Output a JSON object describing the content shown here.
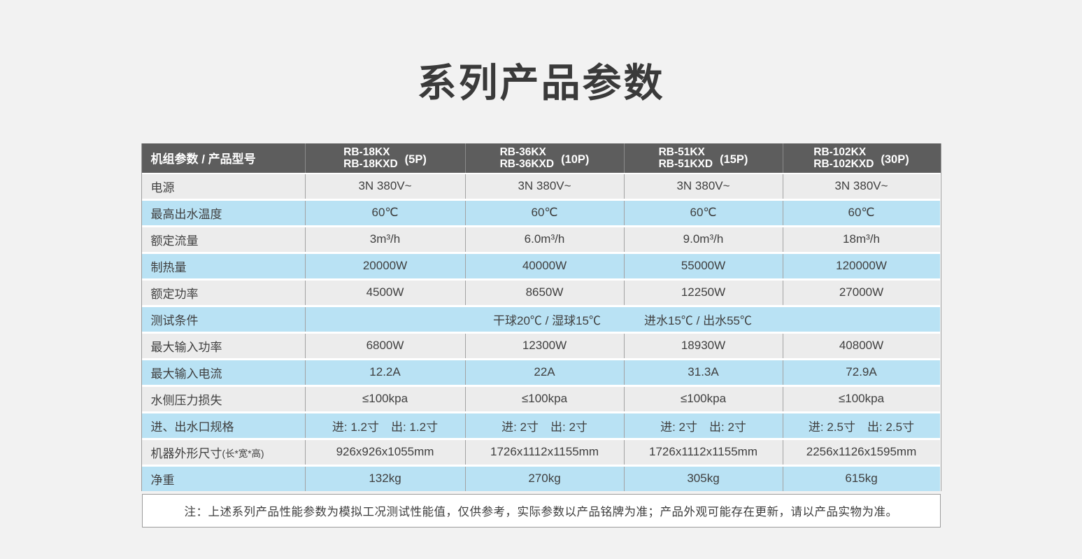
{
  "page": {
    "title": "系列产品参数"
  },
  "colors": {
    "page_background": "#f2f2f2",
    "header_background": "#5d5d5d",
    "header_text": "#ffffff",
    "row_blue": "#b9e2f4",
    "row_gray": "#ececec",
    "border": "#9c9c9c",
    "title_text": "#3a3a3a"
  },
  "table": {
    "header": {
      "label": "机组参数 / 产品型号",
      "columns": [
        {
          "line1": "RB-18KX",
          "line2": "RB-18KXD",
          "power": "(5P)"
        },
        {
          "line1": "RB-36KX",
          "line2": "RB-36KXD",
          "power": "(10P)"
        },
        {
          "line1": "RB-51KX",
          "line2": "RB-51KXD",
          "power": "(15P)"
        },
        {
          "line1": "RB-102KX",
          "line2": "RB-102KXD",
          "power": "(30P)"
        }
      ]
    },
    "rows": [
      {
        "label": "电源",
        "values": [
          "3N 380V~",
          "3N 380V~",
          "3N 380V~",
          "3N 380V~"
        ]
      },
      {
        "label": "最高出水温度",
        "values": [
          "60℃",
          "60℃",
          "60℃",
          "60℃"
        ]
      },
      {
        "label": "额定流量",
        "values": [
          "3m³/h",
          "6.0m³/h",
          "9.0m³/h",
          "18m³/h"
        ]
      },
      {
        "label": "制热量",
        "values": [
          "20000W",
          "40000W",
          "55000W",
          "120000W"
        ]
      },
      {
        "label": "额定功率",
        "values": [
          "4500W",
          "8650W",
          "12250W",
          "27000W"
        ]
      },
      {
        "label": "测试条件",
        "merged": {
          "part1": "干球20℃ / 湿球15℃",
          "part2": "进水15℃ / 出水55℃"
        }
      },
      {
        "label": "最大输入功率",
        "values": [
          "6800W",
          "12300W",
          "18930W",
          "40800W"
        ]
      },
      {
        "label": "最大输入电流",
        "values": [
          "12.2A",
          "22A",
          "31.3A",
          "72.9A"
        ]
      },
      {
        "label": "水侧压力损失",
        "values": [
          "≤100kpa",
          "≤100kpa",
          "≤100kpa",
          "≤100kpa"
        ]
      },
      {
        "label": "进、出水口规格",
        "values": [
          "进: 1.2寸　出: 1.2寸",
          "进: 2寸　出: 2寸",
          "进: 2寸　出: 2寸",
          "进: 2.5寸　出: 2.5寸"
        ]
      },
      {
        "label": "机器外形尺寸",
        "label_suffix": "(长*宽*高)",
        "values": [
          "926x926x1055mm",
          "1726x1112x1155mm",
          "1726x1112x1155mm",
          "2256x1126x1595mm"
        ]
      },
      {
        "label": "净重",
        "values": [
          "132kg",
          "270kg",
          "305kg",
          "615kg"
        ]
      }
    ],
    "note": "注：上述系列产品性能参数为模拟工况测试性能值，仅供参考，实际参数以产品铭牌为准；产品外观可能存在更新，请以产品实物为准。"
  }
}
